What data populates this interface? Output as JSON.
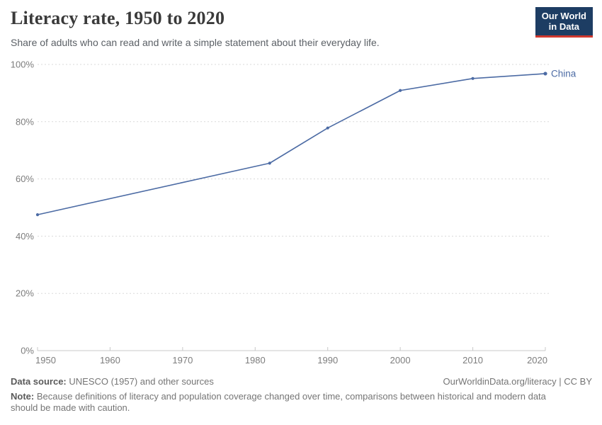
{
  "header": {
    "title": "Literacy rate, 1950 to 2020",
    "subtitle": "Share of adults who can read and write a simple statement about their everyday life.",
    "logo": {
      "line1": "Our World",
      "line2": "in Data"
    }
  },
  "footer": {
    "data_source_label": "Data source:",
    "data_source_text": "UNESCO (1957) and other sources",
    "link_text": "OurWorldinData.org/literacy | CC BY",
    "note_label": "Note:",
    "note_text": "Because definitions of literacy and population coverage changed over time, comparisons between historical and modern data should be made with caution."
  },
  "colors": {
    "series_blue": "#4c6ba4",
    "logo_navy": "#1d3d63",
    "logo_red": "#d0382e",
    "gridline": "#dadada",
    "axis_line": "#c8c8c8",
    "tick_text": "#7d7d7d"
  },
  "chart_data": {
    "type": "line",
    "title": "Literacy rate, 1950 to 2020",
    "subtitle": "Share of adults who can read and write a simple statement about their everyday life.",
    "xlabel": "",
    "ylabel": "",
    "xlim": [
      1950,
      2020
    ],
    "ylim": [
      0,
      100
    ],
    "x_ticks": [
      1950,
      1960,
      1970,
      1980,
      1990,
      2000,
      2010,
      2020
    ],
    "y_ticks": [
      0,
      20,
      40,
      60,
      80,
      100
    ],
    "y_tick_suffix": "%",
    "grid": "horizontal-dashed",
    "legend": "end-of-line-label",
    "series": [
      {
        "name": "China",
        "color": "#4c6ba4",
        "points": [
          [
            1950,
            47.5
          ],
          [
            1982,
            65.5
          ],
          [
            1990,
            77.8
          ],
          [
            2000,
            90.9
          ],
          [
            2010,
            95.1
          ],
          [
            2020,
            96.8
          ]
        ]
      }
    ]
  }
}
